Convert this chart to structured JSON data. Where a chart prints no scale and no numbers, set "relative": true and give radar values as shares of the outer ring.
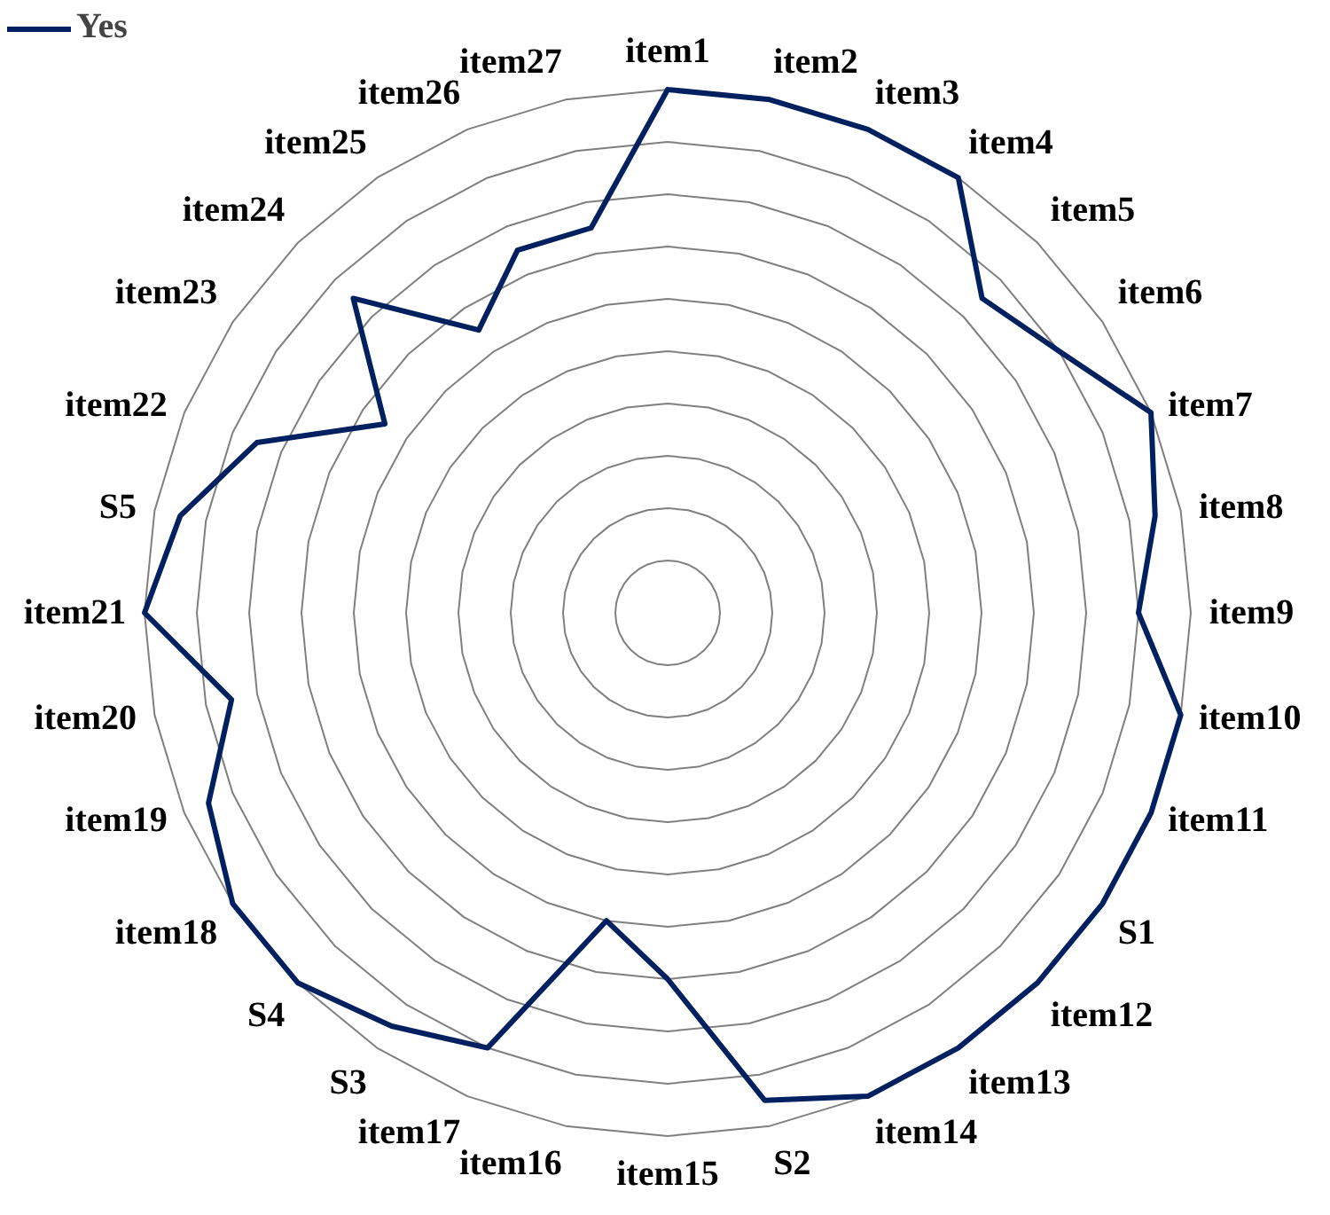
{
  "chart_data": {
    "type": "radar",
    "categories": [
      "item1",
      "item2",
      "item3",
      "item4",
      "item5",
      "item6",
      "item7",
      "item8",
      "item9",
      "item10",
      "item11",
      "S1",
      "item12",
      "item13",
      "item14",
      "S2",
      "item15",
      "item16",
      "item17",
      "S3",
      "S4",
      "item18",
      "item19",
      "item20",
      "item21",
      "S5",
      "item22",
      "item23",
      "item24",
      "item25",
      "item26",
      "item27"
    ],
    "series": [
      {
        "name": "Yes",
        "color": "#002060",
        "values": [
          1.0,
          1.0,
          1.0,
          1.0,
          0.85,
          0.9,
          1.0,
          0.95,
          0.9,
          1.0,
          1.0,
          1.0,
          1.0,
          1.0,
          1.0,
          0.95,
          0.7,
          0.6,
          0.9,
          0.95,
          1.0,
          1.0,
          0.95,
          0.85,
          1.0,
          0.95,
          0.85,
          0.65,
          0.85,
          0.65,
          0.75,
          0.75
        ]
      }
    ],
    "relative": true,
    "grid": true,
    "legend": "top left"
  }
}
